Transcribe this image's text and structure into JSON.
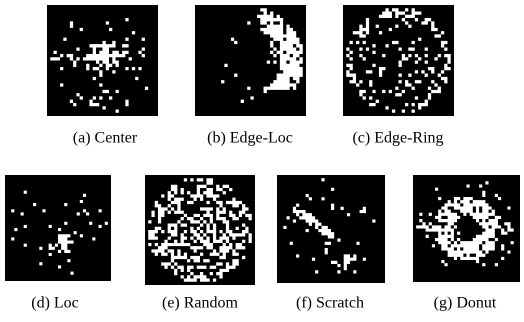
{
  "figures": [
    {
      "caption": "(a) Center"
    },
    {
      "caption": "(b) Edge-Loc"
    },
    {
      "caption": "(c) Edge-Ring"
    },
    {
      "caption": "(d) Loc"
    },
    {
      "caption": "(e) Random"
    },
    {
      "caption": "(f) Scratch"
    },
    {
      "caption": "(g) Donut"
    }
  ]
}
